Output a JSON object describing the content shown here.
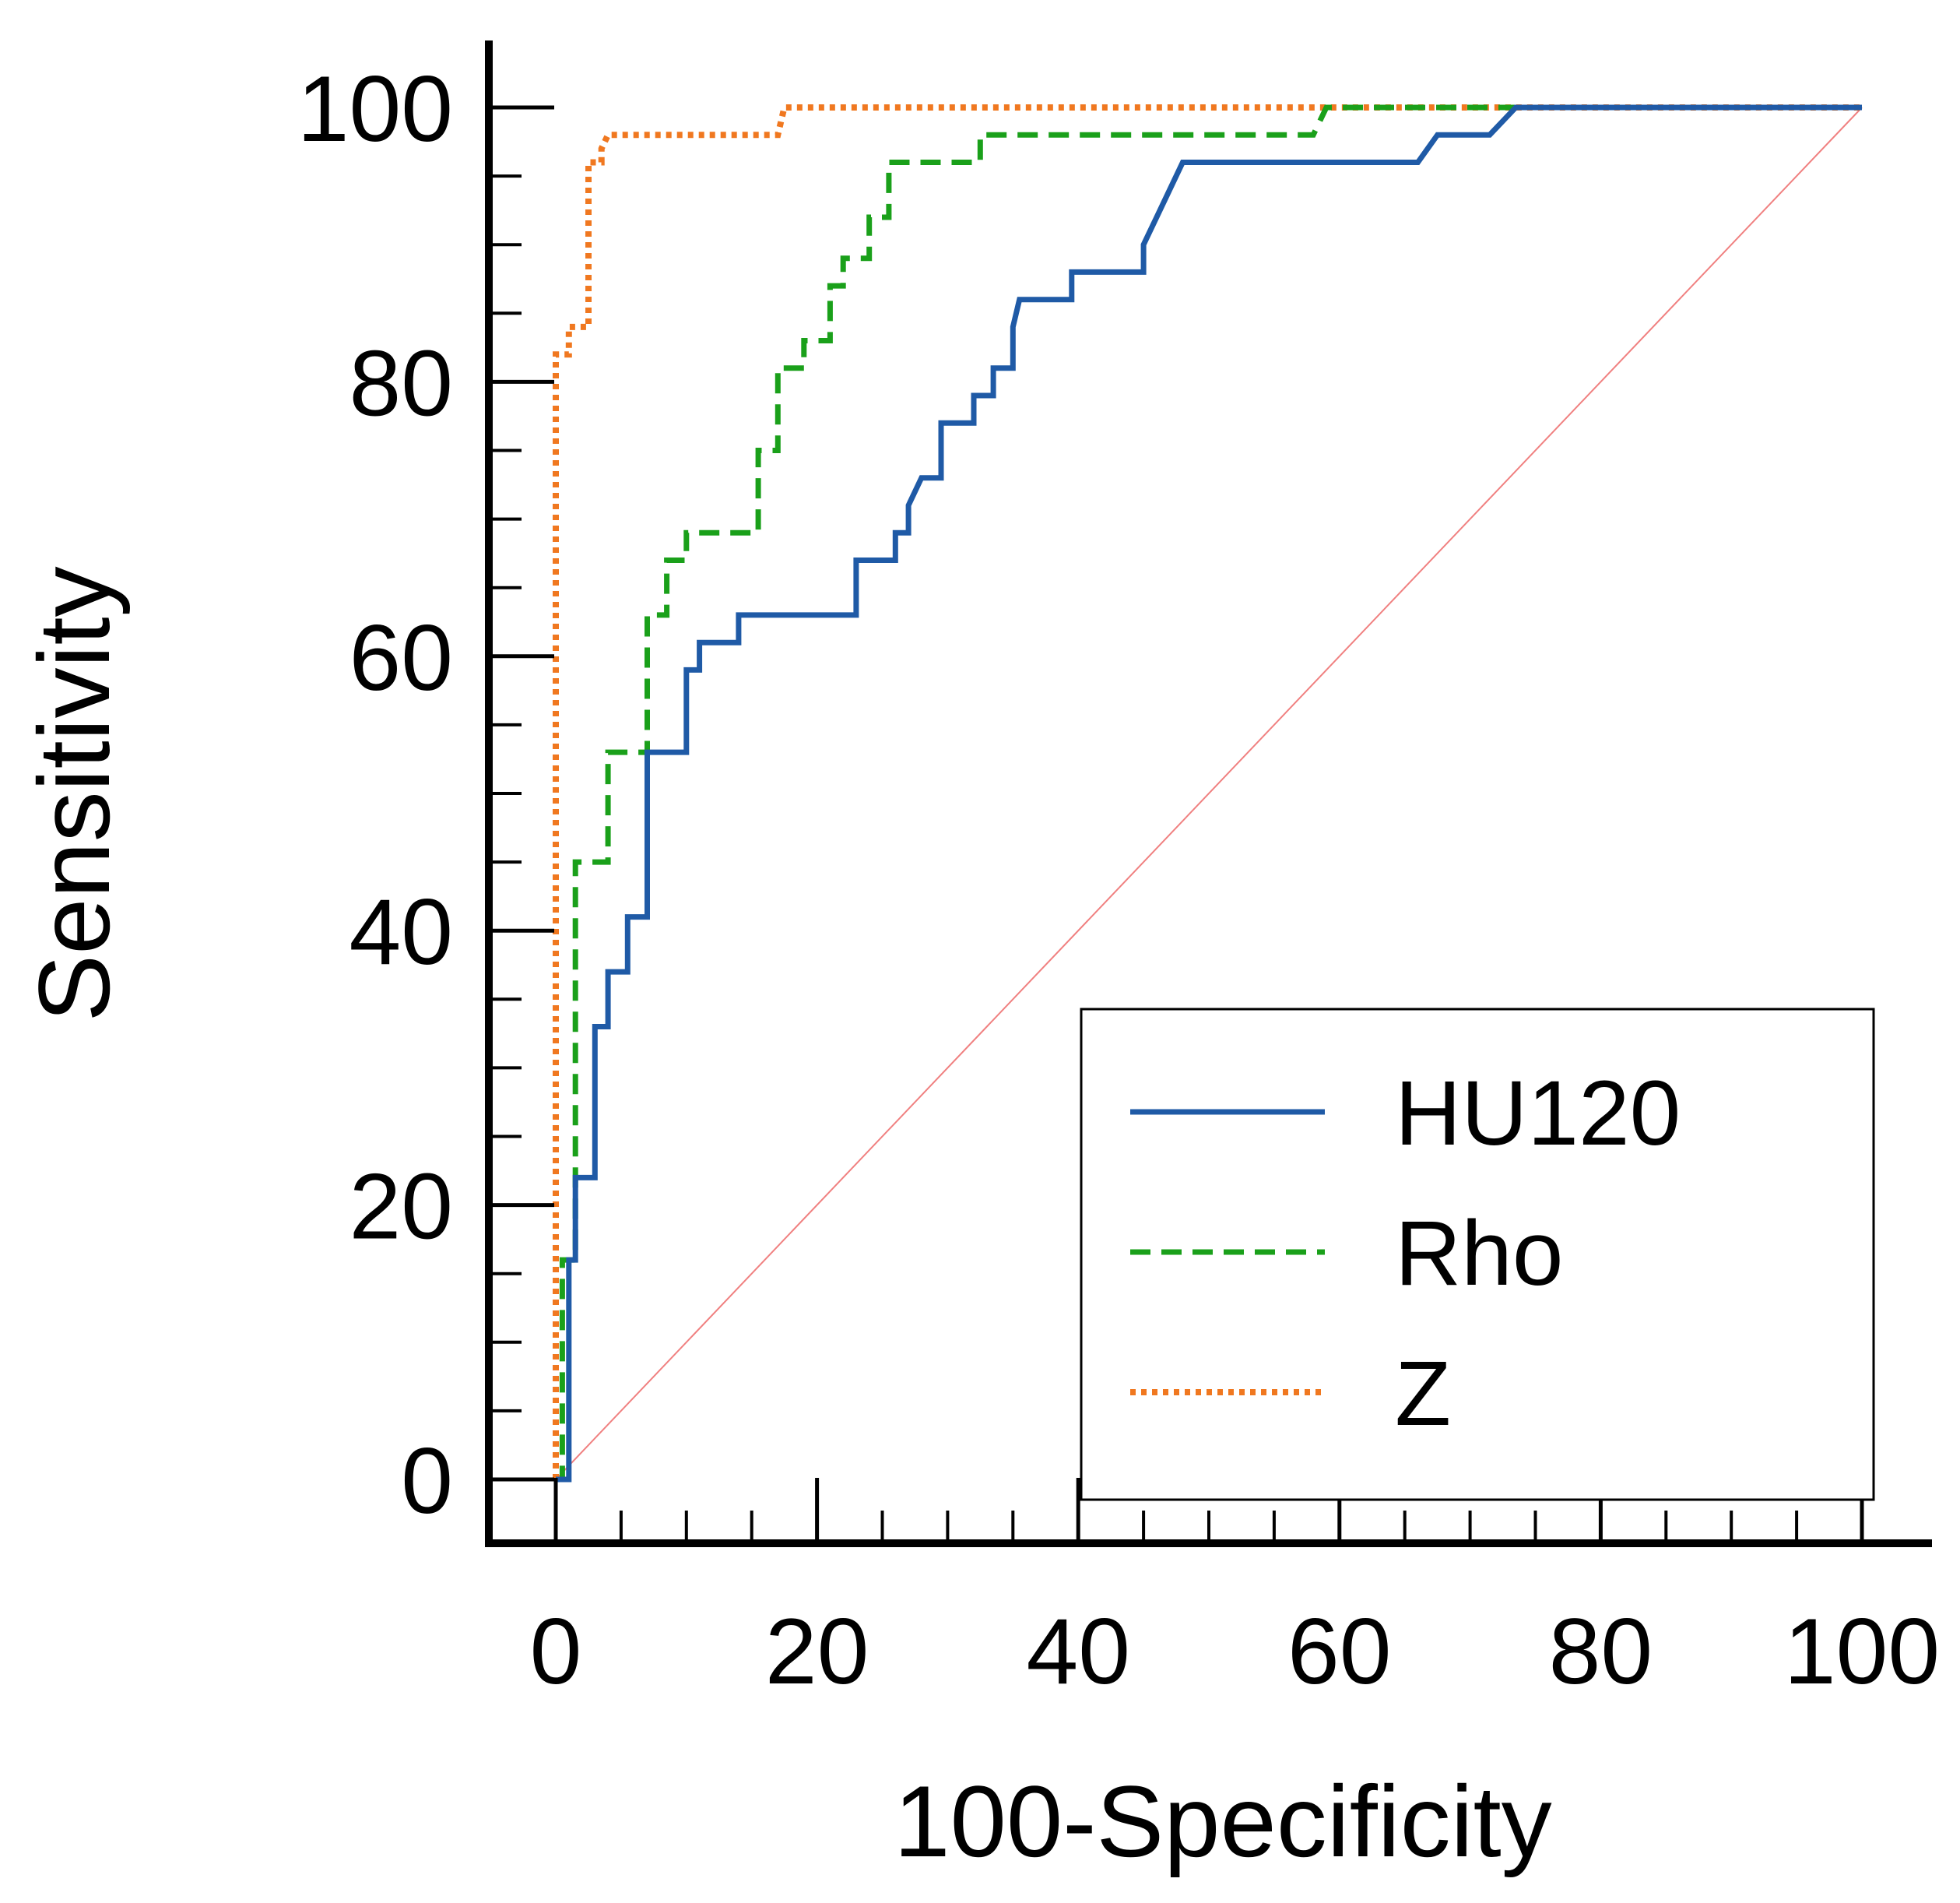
{
  "chart_data": {
    "type": "line",
    "title": "",
    "xlabel": "100-Specificity",
    "ylabel": "Sensitivity",
    "xlim": [
      0,
      100
    ],
    "ylim": [
      0,
      100
    ],
    "xticks": [
      "0",
      "20",
      "40",
      "60",
      "80",
      "100"
    ],
    "yticks": [
      "0",
      "20",
      "40",
      "60",
      "80",
      "100"
    ],
    "grid": false,
    "legend_position": "bottom-right",
    "reference_line": {
      "x": [
        0,
        100
      ],
      "y": [
        0,
        100
      ],
      "color": "#f08080"
    },
    "series": [
      {
        "name": "HU120",
        "color": "#1f5aa6",
        "style": "solid",
        "x": [
          0,
          1,
          1,
          1.5,
          1.5,
          3,
          3,
          4,
          4,
          5.5,
          5.5,
          7,
          7,
          10,
          10,
          11,
          11,
          14,
          14,
          23,
          23,
          26,
          26,
          27,
          27,
          28,
          28.5,
          29.5,
          29.5,
          32,
          32,
          33.5,
          33.5,
          35,
          35,
          35.5,
          37,
          39.5,
          39.5,
          45,
          45,
          46,
          48,
          66,
          67.5,
          71.5,
          73.5,
          100
        ],
        "y": [
          0,
          0,
          16,
          16,
          22,
          22,
          33,
          33,
          37,
          37,
          41,
          41,
          53,
          53,
          59,
          59,
          61,
          61,
          63,
          63,
          67,
          67,
          69,
          69,
          71,
          73,
          73,
          73,
          77,
          77,
          79,
          79,
          81,
          81,
          84,
          86,
          86,
          86,
          88,
          88,
          90,
          92,
          96,
          96,
          98,
          98,
          100,
          100
        ]
      },
      {
        "name": "Rho",
        "color": "#1aa01a",
        "style": "dashed",
        "x": [
          0,
          0.5,
          0.5,
          1.5,
          1.5,
          4,
          4,
          7,
          7,
          8.5,
          8.5,
          10,
          10,
          15.5,
          15.5,
          17,
          17,
          19,
          19,
          21,
          21,
          22,
          22,
          24,
          24,
          25.5,
          25.5,
          32.5,
          32.5,
          58,
          59,
          100
        ],
        "y": [
          0,
          0,
          16,
          16,
          45,
          45,
          53,
          53,
          63,
          63,
          67,
          67,
          69,
          69,
          75,
          75,
          81,
          81,
          83,
          83,
          87,
          87,
          89,
          89,
          92,
          92,
          96,
          96,
          98,
          98,
          100,
          100
        ]
      },
      {
        "name": "Z",
        "color": "#f07820",
        "style": "dotted",
        "x": [
          0,
          0,
          1,
          1,
          2.5,
          2.5,
          3.5,
          3.5,
          4,
          4.5,
          17,
          17.5,
          100
        ],
        "y": [
          0,
          82,
          82,
          84,
          84,
          96,
          96,
          97,
          98,
          98,
          98,
          100,
          100
        ]
      }
    ]
  }
}
